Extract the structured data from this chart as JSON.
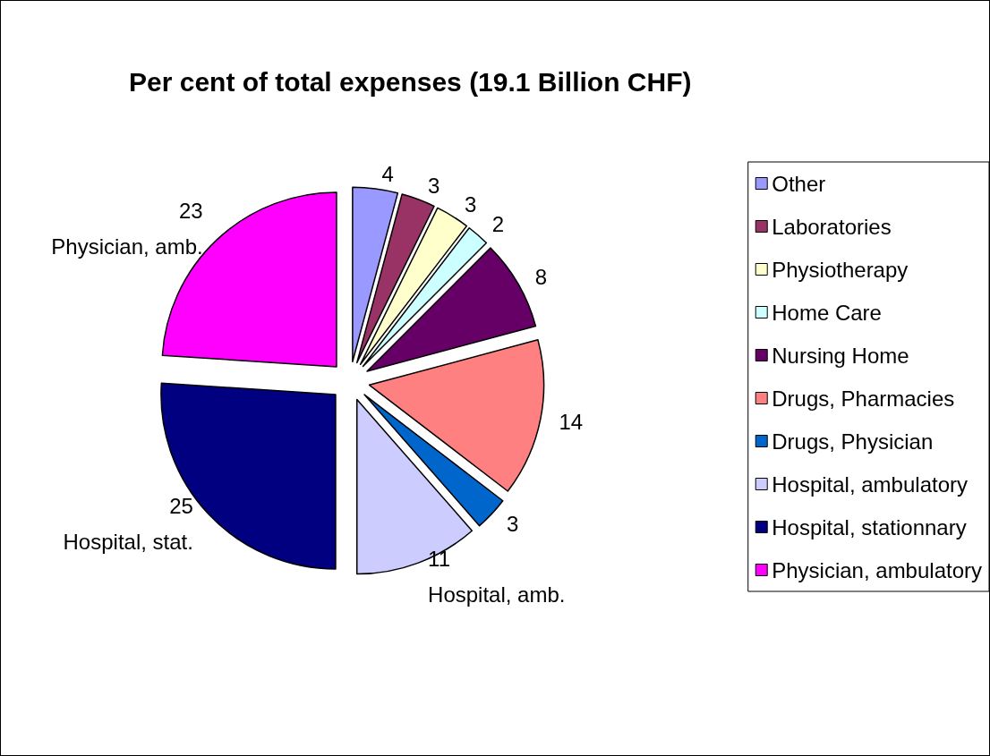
{
  "chart_data": {
    "type": "pie",
    "title": "Per cent of total expenses (19.1 Billion CHF)",
    "categories": [
      "Other",
      "Laboratories",
      "Physiotherapy",
      "Home Care",
      "Nursing Home",
      "Drugs, Pharmacies",
      "Drugs, Physician",
      "Hospital, ambulatory",
      "Hospital, stationnary",
      "Physician, ambulatory"
    ],
    "values": [
      4,
      3,
      3,
      2,
      8,
      14,
      3,
      11,
      25,
      23
    ],
    "colors": [
      "#9999ff",
      "#993366",
      "#ffffcc",
      "#ccffff",
      "#660066",
      "#ff8080",
      "#0066cc",
      "#ccccff",
      "#000080",
      "#ff00ff"
    ],
    "data_labels": true,
    "legend": "right",
    "annotations": [
      {
        "text": "Hospital, amb.",
        "x": "Hospital, ambulatory"
      },
      {
        "text": "Hospital, stat.",
        "x": "Hospital, stationnary"
      },
      {
        "text": "Physician, amb.",
        "x": "Physician, ambulatory"
      }
    ]
  }
}
